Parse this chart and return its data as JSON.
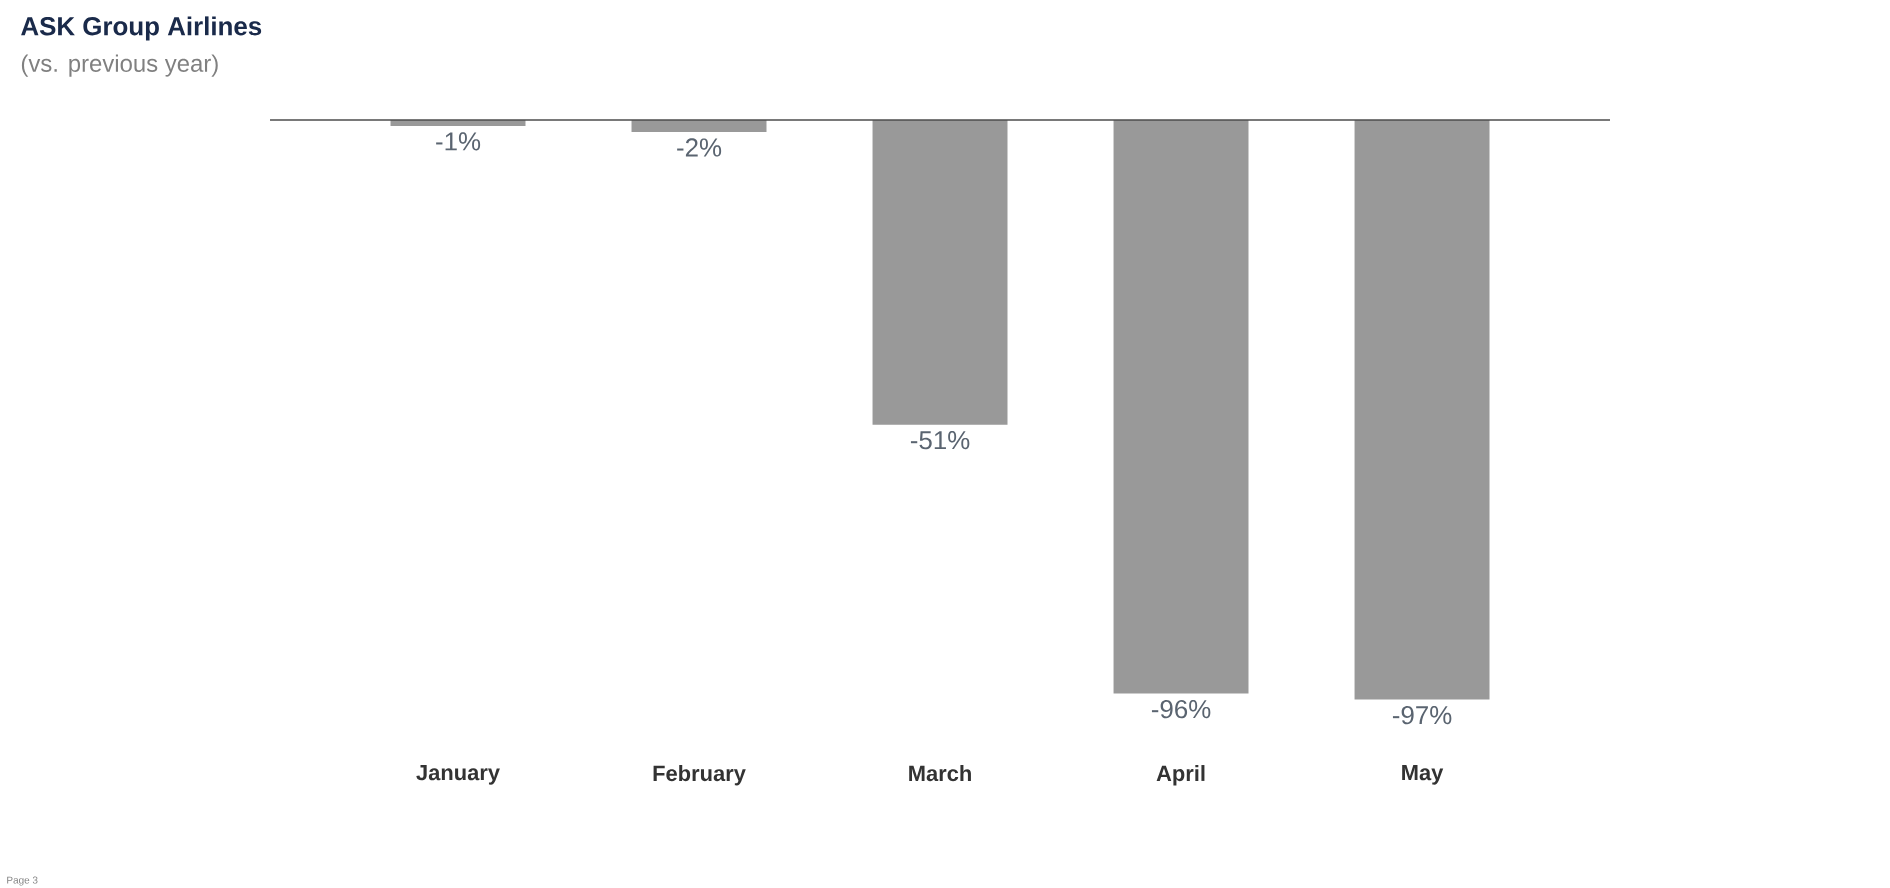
{
  "chart_data": {
    "type": "bar",
    "title": "ASK Group Airlines",
    "subtitle": "(vs. previous year)",
    "categories": [
      "January",
      "February",
      "March",
      "April",
      "May"
    ],
    "values": [
      -1,
      -2,
      -51,
      -96,
      -97
    ],
    "value_labels": [
      "-1%",
      "-2%",
      "-51%",
      "-96%",
      "-97%"
    ],
    "color": "#999999",
    "annotations": [
      "Page 3"
    ]
  }
}
